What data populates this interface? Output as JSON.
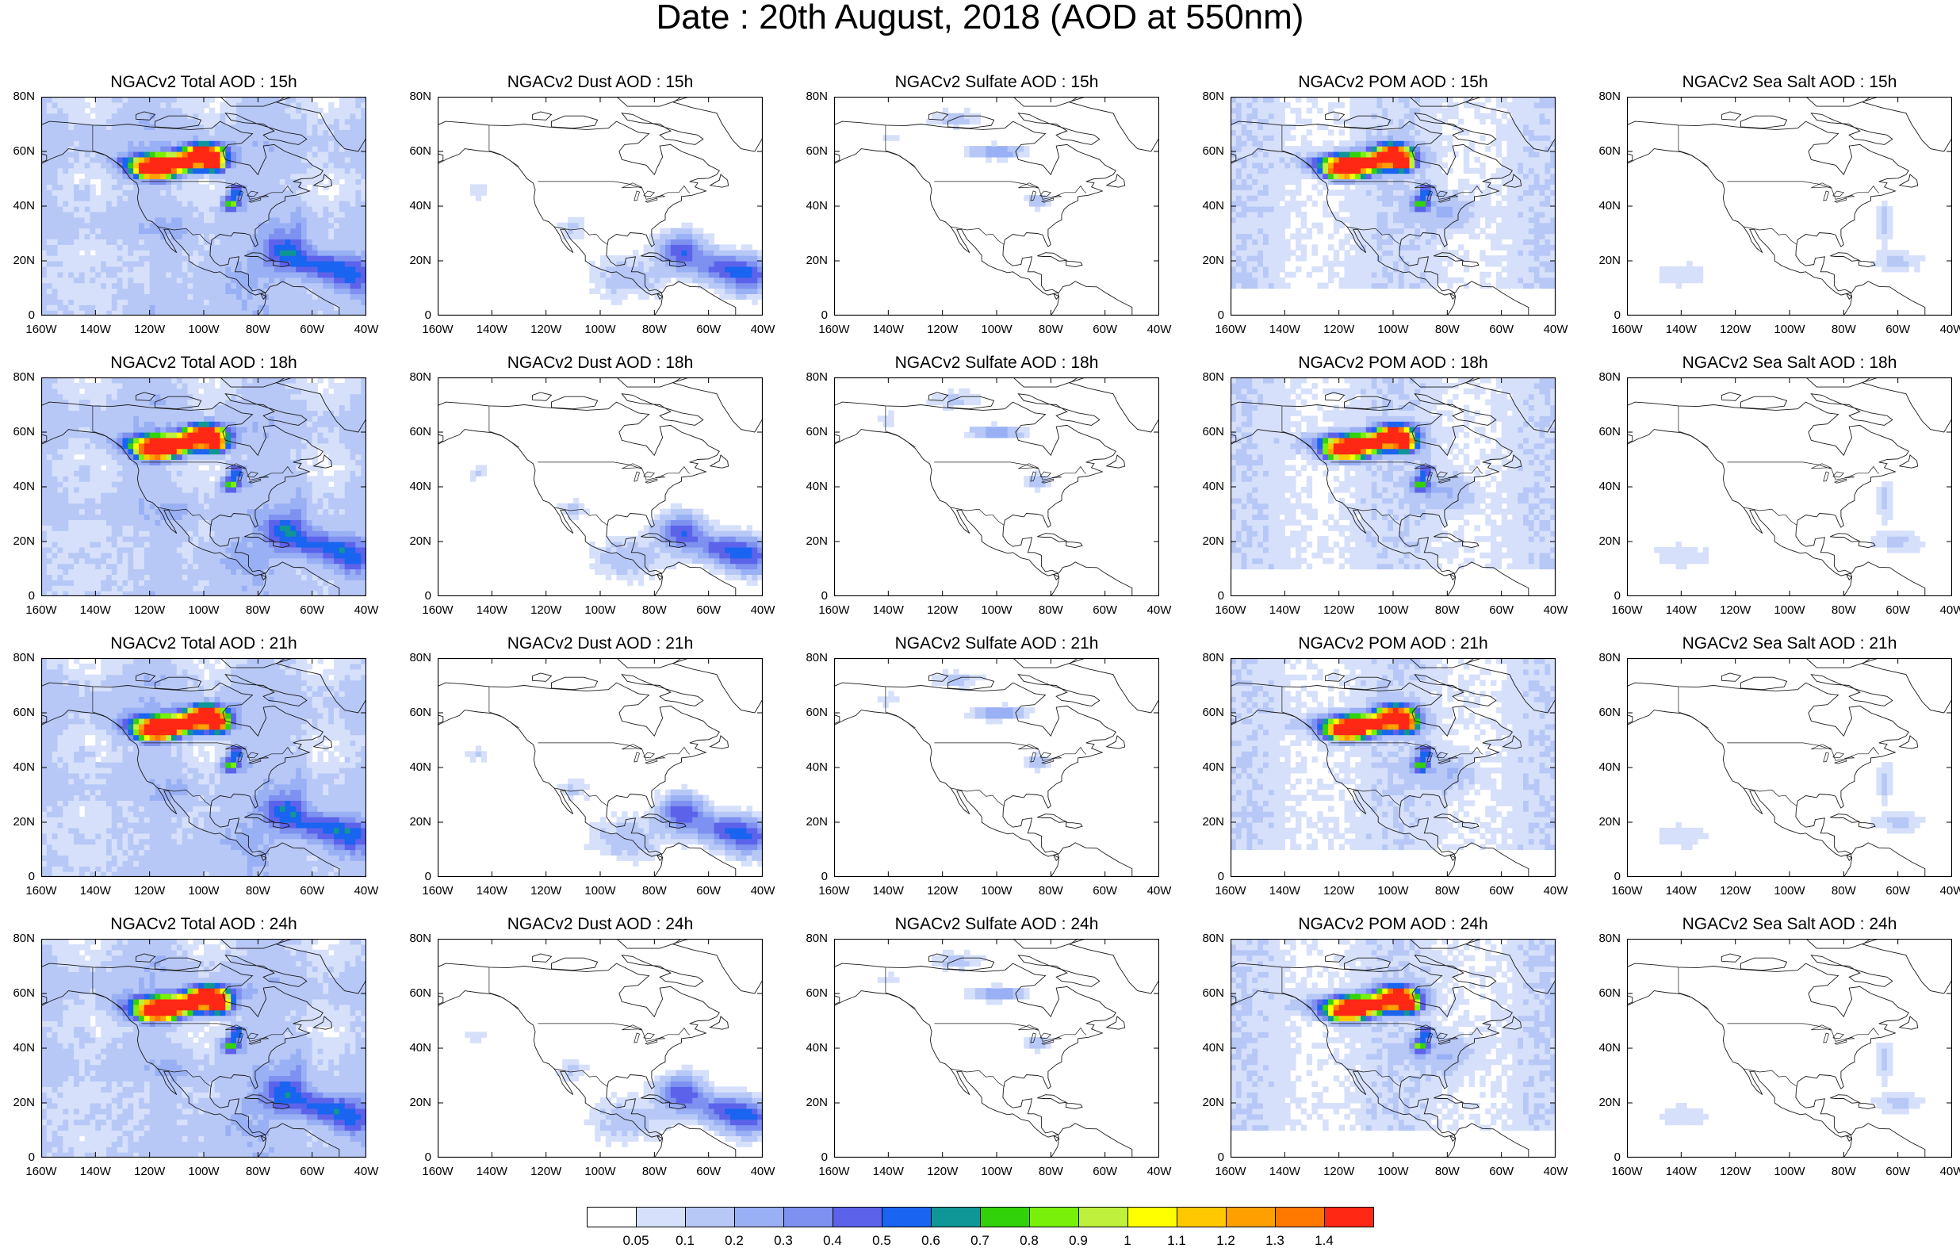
{
  "title": "Date : 20th August, 2018 (AOD at 550nm)",
  "species": [
    "Total",
    "Dust",
    "Sulfate",
    "POM",
    "Sea Salt"
  ],
  "hours": [
    "15h",
    "18h",
    "21h",
    "24h"
  ],
  "panel_titles": [
    [
      "NGACv2 Total AOD : 15h",
      "NGACv2 Dust AOD : 15h",
      "NGACv2 Sulfate AOD : 15h",
      "NGACv2 POM AOD : 15h",
      "NGACv2 Sea Salt AOD : 15h"
    ],
    [
      "NGACv2 Total AOD : 18h",
      "NGACv2 Dust AOD : 18h",
      "NGACv2 Sulfate AOD : 18h",
      "NGACv2 POM AOD : 18h",
      "NGACv2 Sea Salt AOD : 18h"
    ],
    [
      "NGACv2 Total AOD : 21h",
      "NGACv2 Dust AOD : 21h",
      "NGACv2 Sulfate AOD : 21h",
      "NGACv2 POM AOD : 21h",
      "NGACv2 Sea Salt AOD : 21h"
    ],
    [
      "NGACv2 Total AOD : 24h",
      "NGACv2 Dust AOD : 24h",
      "NGACv2 Sulfate AOD : 24h",
      "NGACv2 POM AOD : 24h",
      "NGACv2 Sea Salt  AOD : 24h"
    ]
  ],
  "lat_ticks": [
    "80N",
    "60N",
    "40N",
    "20N",
    "0"
  ],
  "lon_ticks": [
    "160W",
    "140W",
    "120W",
    "100W",
    "80W",
    "60W",
    "40W"
  ],
  "lon_range": [
    -160,
    -40
  ],
  "lat_range": [
    0,
    80
  ],
  "colorbar": {
    "levels": [
      "0.05",
      "0.1",
      "0.2",
      "0.3",
      "0.4",
      "0.5",
      "0.6",
      "0.7",
      "0.8",
      "0.9",
      "1",
      "1.1",
      "1.2",
      "1.3",
      "1.4"
    ],
    "colors": [
      "#ffffff",
      "#d6e0fa",
      "#b7c8f7",
      "#9ab0f4",
      "#7e90f0",
      "#5c63ea",
      "#1964f0",
      "#0f9696",
      "#32d20a",
      "#78f00a",
      "#bff03c",
      "#ffff00",
      "#ffc800",
      "#ffa000",
      "#ff7800",
      "#ff2814"
    ]
  },
  "map_style": {
    "coast_color": "#1a1a1a",
    "background": "#ffffff"
  }
}
